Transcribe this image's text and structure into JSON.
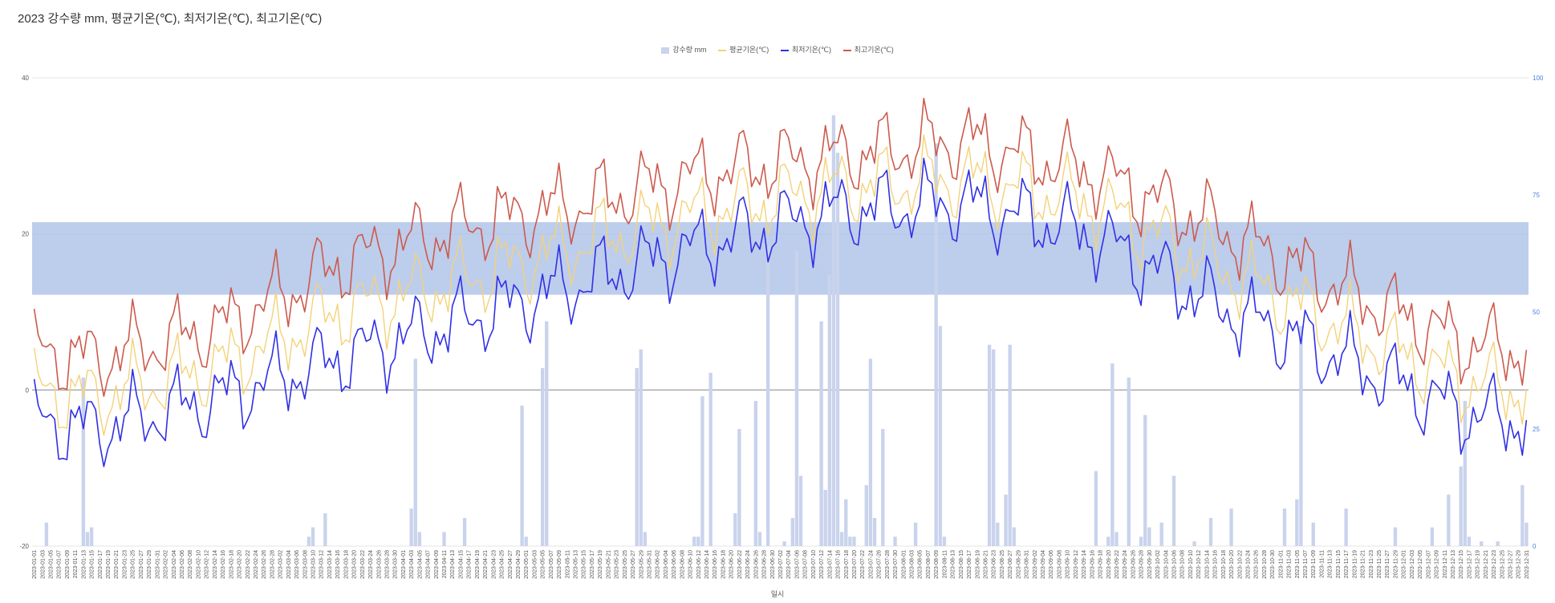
{
  "chart_data": {
    "type": "bar+line",
    "title": "2023 강수량 mm, 평균기온(℃), 최저기온(℃), 최고기온(℃)",
    "xlabel": "일시",
    "ylabel": "",
    "ylim": [
      -20,
      40
    ],
    "y_ticks": [
      "-20",
      "0",
      "20",
      "40"
    ],
    "y2lim": [
      0,
      100
    ],
    "y2_ticks": [
      "0",
      "25",
      "50",
      "75",
      "100"
    ],
    "grid": true,
    "legend_position": "top",
    "x_start": "2023-01-01",
    "x_end": "2023-12-31",
    "x_tick_every_days": 2,
    "colors": {
      "precip": "#c9d3ec",
      "avg": "#f3d27a",
      "min": "#3030e6",
      "max": "#cc5a4c",
      "band": "#a7bce6",
      "zero_line": "#aaaaaa",
      "grid": "#e6e6e6",
      "y2_tick": "#4a7fe0"
    },
    "highlight_band": {
      "from": 12.2,
      "to": 21.5,
      "axis": "y"
    },
    "series": [
      {
        "name": "강수량 mm",
        "kind": "bar",
        "axis": "y2"
      },
      {
        "name": "평균기온(℃)",
        "kind": "line",
        "axis": "y"
      },
      {
        "name": "최저기온(℃)",
        "kind": "line",
        "axis": "y"
      },
      {
        "name": "최고기온(℃)",
        "kind": "line",
        "axis": "y"
      }
    ],
    "monthly_approx": {
      "months": [
        "Jan",
        "Feb",
        "Mar",
        "Apr",
        "May",
        "Jun",
        "Jul",
        "Aug",
        "Sep",
        "Oct",
        "Nov",
        "Dec"
      ],
      "max_temp": [
        4,
        8,
        16,
        21,
        24,
        28,
        30,
        32,
        28,
        21,
        13,
        6
      ],
      "avg_temp": [
        -1,
        3,
        10,
        14,
        19,
        23,
        26,
        27,
        24,
        16,
        8,
        1
      ],
      "min_temp": [
        -5,
        -1,
        4,
        9,
        14,
        19,
        23,
        24,
        20,
        11,
        4,
        -3
      ]
    },
    "precip_events": [
      {
        "date": "2023-01-04",
        "mm": 5
      },
      {
        "date": "2023-01-13",
        "mm": 36
      },
      {
        "date": "2023-01-14",
        "mm": 3
      },
      {
        "date": "2023-01-15",
        "mm": 4
      },
      {
        "date": "2023-03-09",
        "mm": 2
      },
      {
        "date": "2023-03-10",
        "mm": 4
      },
      {
        "date": "2023-03-13",
        "mm": 7
      },
      {
        "date": "2023-04-03",
        "mm": 8
      },
      {
        "date": "2023-04-04",
        "mm": 40
      },
      {
        "date": "2023-04-05",
        "mm": 3
      },
      {
        "date": "2023-04-11",
        "mm": 3
      },
      {
        "date": "2023-04-16",
        "mm": 6
      },
      {
        "date": "2023-04-30",
        "mm": 30
      },
      {
        "date": "2023-05-01",
        "mm": 2
      },
      {
        "date": "2023-05-05",
        "mm": 38
      },
      {
        "date": "2023-05-06",
        "mm": 48
      },
      {
        "date": "2023-05-28",
        "mm": 38
      },
      {
        "date": "2023-05-29",
        "mm": 42
      },
      {
        "date": "2023-05-30",
        "mm": 3
      },
      {
        "date": "2023-06-11",
        "mm": 2
      },
      {
        "date": "2023-06-12",
        "mm": 2
      },
      {
        "date": "2023-06-13",
        "mm": 32
      },
      {
        "date": "2023-06-15",
        "mm": 37
      },
      {
        "date": "2023-06-21",
        "mm": 7
      },
      {
        "date": "2023-06-22",
        "mm": 25
      },
      {
        "date": "2023-06-26",
        "mm": 31
      },
      {
        "date": "2023-06-27",
        "mm": 3
      },
      {
        "date": "2023-06-29",
        "mm": 64
      },
      {
        "date": "2023-07-03",
        "mm": 1
      },
      {
        "date": "2023-07-05",
        "mm": 6
      },
      {
        "date": "2023-07-06",
        "mm": 63
      },
      {
        "date": "2023-07-07",
        "mm": 15
      },
      {
        "date": "2023-07-12",
        "mm": 48
      },
      {
        "date": "2023-07-13",
        "mm": 12
      },
      {
        "date": "2023-07-14",
        "mm": 58
      },
      {
        "date": "2023-07-15",
        "mm": 92
      },
      {
        "date": "2023-07-16",
        "mm": 84
      },
      {
        "date": "2023-07-17",
        "mm": 3
      },
      {
        "date": "2023-07-18",
        "mm": 10
      },
      {
        "date": "2023-07-19",
        "mm": 2
      },
      {
        "date": "2023-07-20",
        "mm": 2
      },
      {
        "date": "2023-07-23",
        "mm": 13
      },
      {
        "date": "2023-07-24",
        "mm": 40
      },
      {
        "date": "2023-07-25",
        "mm": 6
      },
      {
        "date": "2023-07-27",
        "mm": 25
      },
      {
        "date": "2023-07-30",
        "mm": 2
      },
      {
        "date": "2023-08-04",
        "mm": 5
      },
      {
        "date": "2023-08-09",
        "mm": 86
      },
      {
        "date": "2023-08-10",
        "mm": 47
      },
      {
        "date": "2023-08-11",
        "mm": 2
      },
      {
        "date": "2023-08-22",
        "mm": 43
      },
      {
        "date": "2023-08-23",
        "mm": 42
      },
      {
        "date": "2023-08-24",
        "mm": 5
      },
      {
        "date": "2023-08-26",
        "mm": 11
      },
      {
        "date": "2023-08-27",
        "mm": 43
      },
      {
        "date": "2023-08-28",
        "mm": 4
      },
      {
        "date": "2023-09-17",
        "mm": 16
      },
      {
        "date": "2023-09-20",
        "mm": 2
      },
      {
        "date": "2023-09-21",
        "mm": 39
      },
      {
        "date": "2023-09-22",
        "mm": 3
      },
      {
        "date": "2023-09-25",
        "mm": 36
      },
      {
        "date": "2023-09-28",
        "mm": 2
      },
      {
        "date": "2023-09-29",
        "mm": 28
      },
      {
        "date": "2023-09-30",
        "mm": 4
      },
      {
        "date": "2023-10-03",
        "mm": 5
      },
      {
        "date": "2023-10-06",
        "mm": 15
      },
      {
        "date": "2023-10-11",
        "mm": 1
      },
      {
        "date": "2023-10-15",
        "mm": 6
      },
      {
        "date": "2023-10-20",
        "mm": 8
      },
      {
        "date": "2023-11-02",
        "mm": 8
      },
      {
        "date": "2023-11-05",
        "mm": 10
      },
      {
        "date": "2023-11-06",
        "mm": 47
      },
      {
        "date": "2023-11-09",
        "mm": 5
      },
      {
        "date": "2023-11-17",
        "mm": 8
      },
      {
        "date": "2023-11-29",
        "mm": 4
      },
      {
        "date": "2023-12-08",
        "mm": 4
      },
      {
        "date": "2023-12-12",
        "mm": 11
      },
      {
        "date": "2023-12-15",
        "mm": 17
      },
      {
        "date": "2023-12-16",
        "mm": 31
      },
      {
        "date": "2023-12-17",
        "mm": 2
      },
      {
        "date": "2023-12-20",
        "mm": 1
      },
      {
        "date": "2023-12-24",
        "mm": 1
      },
      {
        "date": "2023-12-30",
        "mm": 13
      },
      {
        "date": "2023-12-31",
        "mm": 5
      }
    ]
  }
}
